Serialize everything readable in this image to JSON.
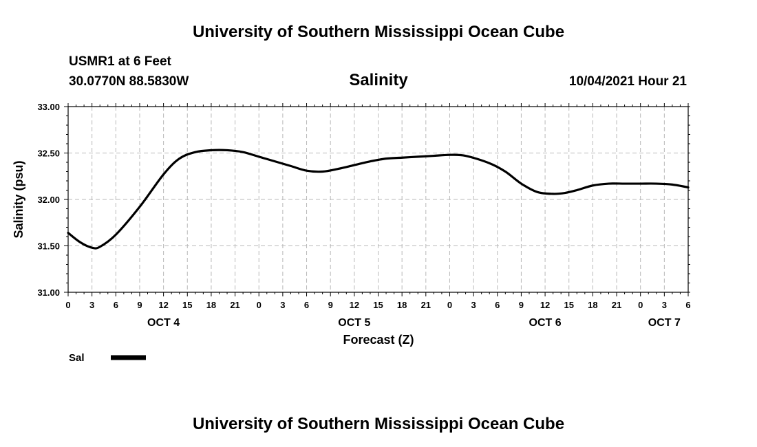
{
  "header": {
    "title": "University of Southern Mississippi Ocean Cube",
    "station": "USMR1 at 6 Feet",
    "coords": "30.0770N  88.5830W",
    "date_hour": "10/04/2021 Hour 21"
  },
  "footer": {
    "title": "University of Southern Mississippi Ocean Cube"
  },
  "legend": {
    "label": "Sal",
    "color": "#000000"
  },
  "chart_data": {
    "type": "line",
    "title": "Salinity",
    "xlabel": "Forecast (Z)",
    "ylabel": "Salinity (psu)",
    "ylim": [
      31.0,
      33.0
    ],
    "xlim": [
      0,
      78
    ],
    "yticks": [
      "31.00",
      "31.50",
      "32.00",
      "32.50",
      "33.00"
    ],
    "ytick_values": [
      31.0,
      31.5,
      32.0,
      32.5,
      33.0
    ],
    "xtick_labels": [
      "0",
      "3",
      "6",
      "9",
      "12",
      "15",
      "18",
      "21",
      "0",
      "3",
      "6",
      "9",
      "12",
      "15",
      "18",
      "21",
      "0",
      "3",
      "6",
      "9",
      "12",
      "15",
      "18",
      "21",
      "0",
      "3",
      "6"
    ],
    "day_labels": [
      {
        "label": "OCT 4",
        "x": 12
      },
      {
        "label": "OCT 5",
        "x": 36
      },
      {
        "label": "OCT 6",
        "x": 60
      },
      {
        "label": "OCT 7",
        "x": 75
      }
    ],
    "grid": true,
    "series": [
      {
        "name": "Sal",
        "x": [
          0,
          1.5,
          3,
          4,
          6,
          9,
          12,
          14,
          16,
          18,
          20,
          22,
          24,
          26,
          28,
          30,
          32,
          34,
          36,
          38,
          40,
          42,
          44,
          46,
          48,
          50,
          53,
          55,
          57,
          59,
          61,
          62.5,
          64,
          66,
          68,
          70,
          72,
          74,
          76,
          78
        ],
        "values": [
          31.64,
          31.54,
          31.48,
          31.49,
          31.62,
          31.92,
          32.27,
          32.44,
          32.51,
          32.53,
          32.53,
          32.51,
          32.46,
          32.41,
          32.36,
          32.31,
          32.3,
          32.33,
          32.37,
          32.41,
          32.44,
          32.45,
          32.46,
          32.47,
          32.48,
          32.47,
          32.39,
          32.3,
          32.17,
          32.08,
          32.06,
          32.07,
          32.1,
          32.15,
          32.17,
          32.17,
          32.17,
          32.17,
          32.16,
          32.13
        ]
      }
    ]
  }
}
